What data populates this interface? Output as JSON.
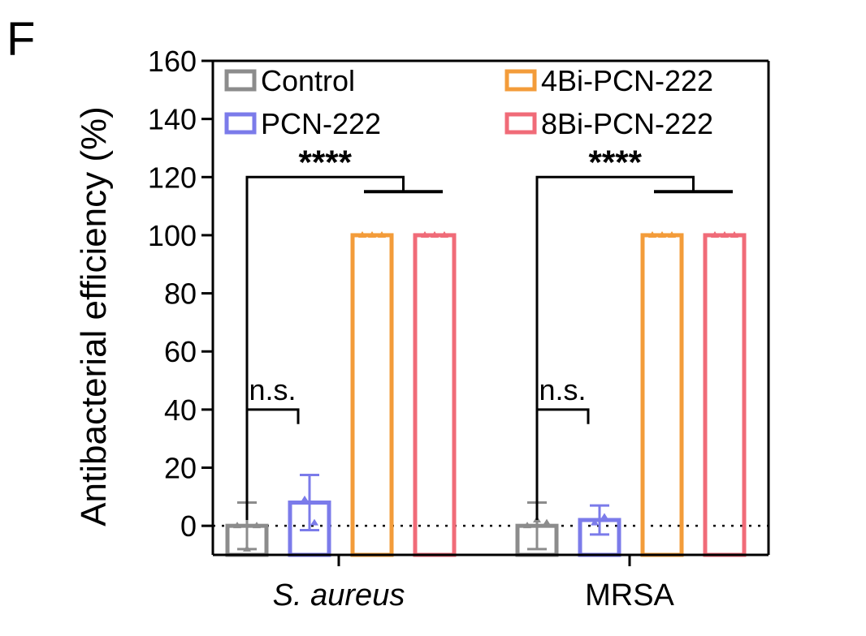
{
  "panel_label": "F",
  "chart_data": {
    "type": "bar",
    "title": "",
    "xlabel": "",
    "ylabel": "Antibacterial efficiency (%)",
    "ylim": [
      -10,
      160
    ],
    "yticks": [
      0,
      20,
      40,
      60,
      80,
      100,
      120,
      140,
      160
    ],
    "categories": [
      "S. aureus",
      "MRSA"
    ],
    "category_italic": [
      true,
      false
    ],
    "series": [
      {
        "name": "Control",
        "color": "#8c8c8c",
        "values": [
          0,
          0
        ],
        "errors": [
          8,
          8
        ],
        "points": [
          [
            0,
            -8,
            0
          ],
          [
            0,
            2,
            1
          ]
        ]
      },
      {
        "name": "PCN-222",
        "color": "#7b7bea",
        "values": [
          8,
          2
        ],
        "errors": [
          9.5,
          5
        ],
        "points": [
          [
            9,
            1
          ],
          [
            1,
            3
          ]
        ]
      },
      {
        "name": "4Bi-PCN-222",
        "color": "#f39c3a",
        "values": [
          100,
          100
        ],
        "errors": [
          0,
          0
        ],
        "points": [
          [
            100,
            100,
            100
          ],
          [
            100,
            100,
            100
          ]
        ]
      },
      {
        "name": "8Bi-PCN-222",
        "color": "#f06b78",
        "values": [
          100,
          100
        ],
        "errors": [
          0,
          0
        ],
        "points": [
          [
            100,
            100,
            100
          ],
          [
            100,
            100,
            100
          ]
        ]
      }
    ],
    "reference_line": {
      "y": 0,
      "style": "dotted"
    },
    "legend": {
      "placement": "top",
      "columns": 2
    },
    "annotations": [
      {
        "text": "****",
        "group": 0,
        "type": "star-bracket"
      },
      {
        "text": "****",
        "group": 1,
        "type": "star-bracket"
      },
      {
        "text": "n.s.",
        "group": 0,
        "type": "ns-bracket"
      },
      {
        "text": "n.s.",
        "group": 1,
        "type": "ns-bracket"
      }
    ]
  }
}
